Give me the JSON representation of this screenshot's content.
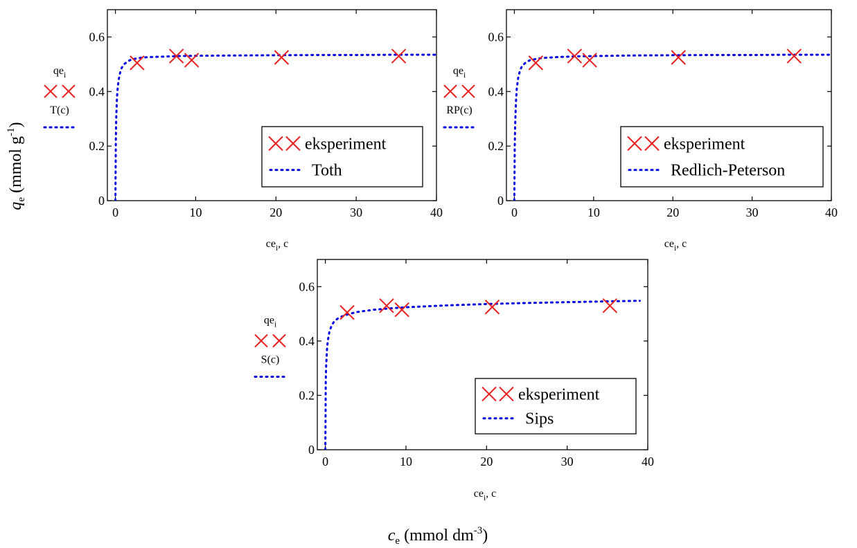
{
  "figure": {
    "ylabel_main": "q",
    "ylabel_sub": "e",
    "ylabel_unit": " (mmol g",
    "ylabel_sup": "-1",
    "ylabel_close": ")",
    "xlabel_main": "c",
    "xlabel_sub": "e",
    "xlabel_unit": " (mmol dm",
    "xlabel_sup": "-3",
    "xlabel_close": ")"
  },
  "colors": {
    "experiment": "#e8201e",
    "model": "#0000e6",
    "axis": "#000000"
  },
  "chart_data": [
    {
      "type": "scatter",
      "id": "toth",
      "xlim": [
        -1,
        40
      ],
      "ylim": [
        0,
        0.7
      ],
      "xticks": [
        0,
        10,
        20,
        30,
        40
      ],
      "yticks": [
        0,
        0.2,
        0.4,
        0.6
      ],
      "xtick_labels": [
        "0",
        "10",
        "20",
        "30",
        "40"
      ],
      "ytick_labels": [
        "0",
        "0.2",
        "0.4",
        "0.6"
      ],
      "x_axis_label": "ce",
      "x_axis_label_sub": "i",
      "x_axis_label_rest": ", c",
      "y_label_points": "qe",
      "y_label_points_sub": "i",
      "y_label_model": "T(c)",
      "legend_position": "bottom-right",
      "series": [
        {
          "name": "eksperiment",
          "kind": "points",
          "x": [
            2.7,
            7.6,
            9.5,
            20.7,
            35.3
          ],
          "y": [
            0.505,
            0.53,
            0.515,
            0.525,
            0.53
          ]
        },
        {
          "name": "Toth",
          "kind": "curve",
          "x": [
            0,
            0.05,
            0.1,
            0.2,
            0.3,
            0.5,
            0.75,
            1,
            1.5,
            2,
            3,
            4,
            6,
            8,
            10,
            15,
            20,
            25,
            30,
            35,
            40
          ],
          "y": [
            0,
            0.22,
            0.3,
            0.38,
            0.42,
            0.46,
            0.485,
            0.498,
            0.51,
            0.518,
            0.523,
            0.526,
            0.528,
            0.53,
            0.531,
            0.532,
            0.533,
            0.534,
            0.534,
            0.535,
            0.535
          ]
        }
      ]
    },
    {
      "type": "scatter",
      "id": "redlich-peterson",
      "xlim": [
        -1,
        40
      ],
      "ylim": [
        0,
        0.7
      ],
      "xticks": [
        0,
        10,
        20,
        30,
        40
      ],
      "yticks": [
        0,
        0.2,
        0.4,
        0.6
      ],
      "xtick_labels": [
        "0",
        "10",
        "20",
        "30",
        "40"
      ],
      "ytick_labels": [
        "0",
        "0.2",
        "0.4",
        "0.6"
      ],
      "x_axis_label": "ce",
      "x_axis_label_sub": "i",
      "x_axis_label_rest": ", c",
      "y_label_points": "qe",
      "y_label_points_sub": "i",
      "y_label_model": "RP(c)",
      "legend_position": "bottom-right",
      "series": [
        {
          "name": "eksperiment",
          "kind": "points",
          "x": [
            2.7,
            7.6,
            9.5,
            20.7,
            35.3
          ],
          "y": [
            0.505,
            0.53,
            0.515,
            0.525,
            0.53
          ]
        },
        {
          "name": "Redlich-Peterson",
          "kind": "curve",
          "x": [
            0,
            0.05,
            0.1,
            0.2,
            0.3,
            0.5,
            0.75,
            1,
            1.5,
            2,
            3,
            4,
            6,
            8,
            10,
            15,
            20,
            25,
            30,
            35,
            40
          ],
          "y": [
            0,
            0.2,
            0.28,
            0.36,
            0.41,
            0.455,
            0.48,
            0.495,
            0.508,
            0.515,
            0.521,
            0.524,
            0.527,
            0.529,
            0.53,
            0.532,
            0.533,
            0.534,
            0.534,
            0.535,
            0.535
          ]
        }
      ]
    },
    {
      "type": "scatter",
      "id": "sips",
      "xlim": [
        -1,
        40
      ],
      "ylim": [
        0,
        0.7
      ],
      "xticks": [
        0,
        10,
        20,
        30,
        40
      ],
      "yticks": [
        0,
        0.2,
        0.4,
        0.6
      ],
      "xtick_labels": [
        "0",
        "10",
        "20",
        "30",
        "40"
      ],
      "ytick_labels": [
        "0",
        "0.2",
        "0.4",
        "0.6"
      ],
      "x_axis_label": "ce",
      "x_axis_label_sub": "i",
      "x_axis_label_rest": ", c",
      "y_label_points": "qe",
      "y_label_points_sub": "i",
      "y_label_model": "S(c)",
      "legend_position": "bottom-right",
      "series": [
        {
          "name": "eksperiment",
          "kind": "points",
          "x": [
            2.7,
            7.6,
            9.5,
            20.7,
            35.3
          ],
          "y": [
            0.505,
            0.53,
            0.515,
            0.525,
            0.53
          ]
        },
        {
          "name": "Sips",
          "kind": "curve",
          "x": [
            0,
            0.05,
            0.1,
            0.2,
            0.3,
            0.5,
            0.75,
            1,
            1.5,
            2,
            3,
            4,
            6,
            8,
            10,
            15,
            20,
            25,
            30,
            35,
            39
          ],
          "y": [
            0,
            0.25,
            0.31,
            0.37,
            0.4,
            0.435,
            0.455,
            0.468,
            0.482,
            0.49,
            0.5,
            0.507,
            0.515,
            0.52,
            0.524,
            0.531,
            0.536,
            0.54,
            0.543,
            0.546,
            0.548
          ]
        }
      ]
    }
  ]
}
